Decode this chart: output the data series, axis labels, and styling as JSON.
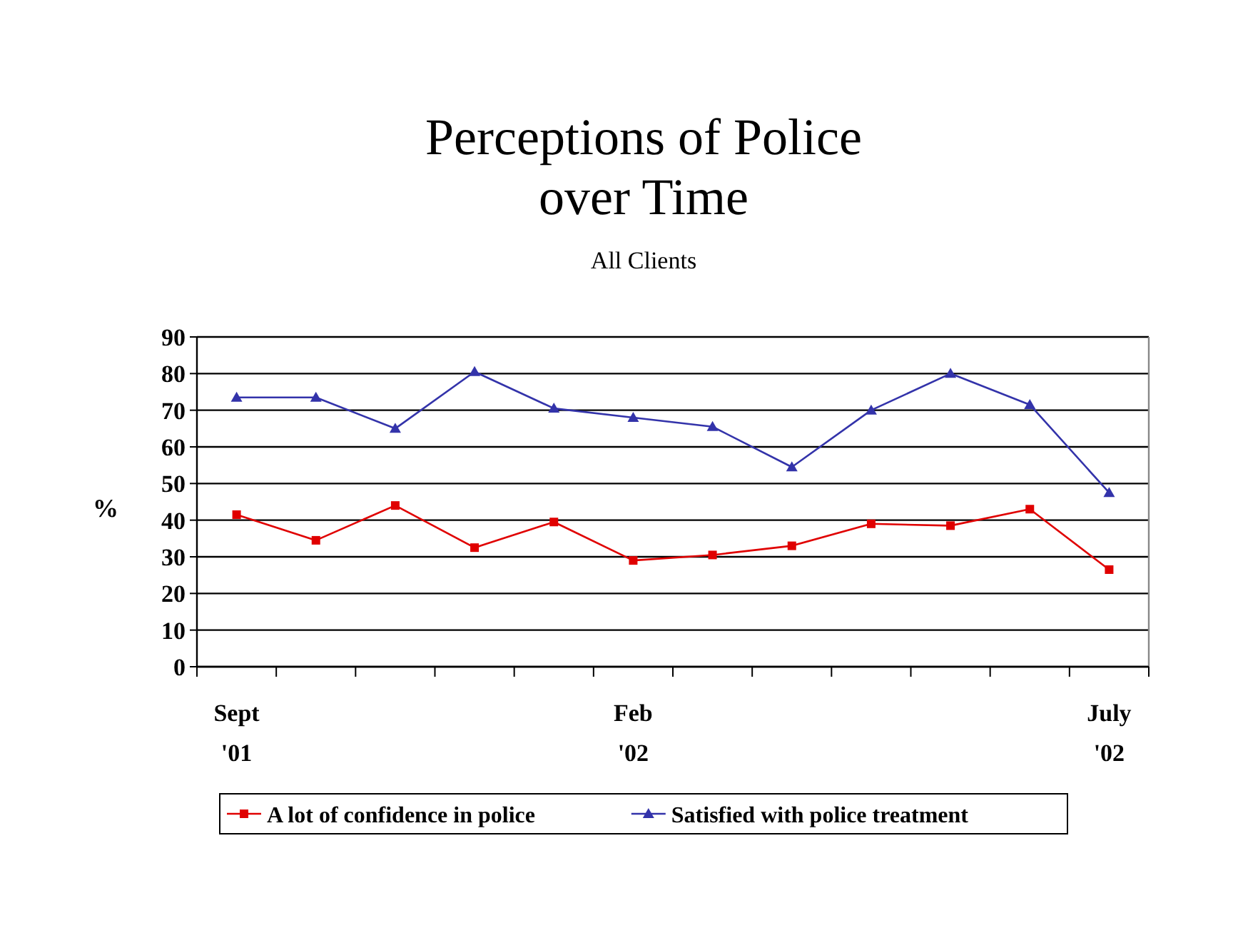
{
  "chart_data": {
    "type": "line",
    "title": "Perceptions of Police over Time",
    "subtitle": "All Clients",
    "ylabel": "%",
    "categories": [
      "Sept\n'01",
      null,
      null,
      null,
      null,
      "Feb\n'02",
      null,
      null,
      null,
      null,
      null,
      "July\n'02"
    ],
    "series": [
      {
        "name": "A lot of confidence in police",
        "color": "#e00000",
        "marker": "square",
        "values": [
          41.5,
          34.5,
          44,
          32.5,
          39.5,
          29,
          30.5,
          33,
          39,
          38.5,
          43,
          26.5
        ]
      },
      {
        "name": "Satisfied with police treatment",
        "color": "#3333aa",
        "marker": "triangle",
        "values": [
          73.5,
          73.5,
          65,
          80.5,
          70.5,
          68,
          65.5,
          54.5,
          70,
          80,
          71.5,
          47.5
        ]
      }
    ],
    "ylim": [
      0,
      90
    ],
    "yticks": [
      0,
      10,
      20,
      30,
      40,
      50,
      60,
      70,
      80,
      90
    ],
    "grid": "y",
    "legend": "bottom",
    "line_style": "solid"
  }
}
